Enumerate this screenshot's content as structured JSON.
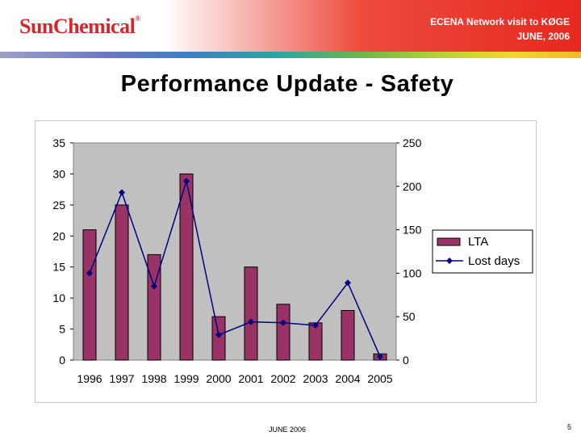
{
  "header": {
    "brand": "SunChemical",
    "brand_mark": "®",
    "event_line1": "ECENA Network visit to KØGE",
    "event_line2": "JUNE, 2006"
  },
  "slide": {
    "title": "Performance Update - Safety",
    "footer": "JUNE  2006",
    "page_number": "5"
  },
  "colors": {
    "plot_bg": "#c0c0c0",
    "bar_fill": "#993366",
    "line": "#000080",
    "marker": "#000080"
  },
  "chart_data": {
    "type": "bar",
    "categories": [
      "1996",
      "1997",
      "1998",
      "1999",
      "2000",
      "2001",
      "2002",
      "2003",
      "2004",
      "2005"
    ],
    "series": [
      {
        "name": "LTA",
        "type": "bar",
        "axis": "left",
        "values": [
          21,
          25,
          17,
          30,
          7,
          15,
          9,
          6,
          8,
          1
        ]
      },
      {
        "name": "Lost days",
        "type": "line",
        "axis": "right",
        "values": [
          100,
          193,
          85,
          206,
          29,
          44,
          43,
          40,
          89,
          4
        ]
      }
    ],
    "ylim_left": [
      0,
      35
    ],
    "yticks_left": [
      0,
      5,
      10,
      15,
      20,
      25,
      30,
      35
    ],
    "ylim_right": [
      0,
      250
    ],
    "yticks_right": [
      0,
      50,
      100,
      150,
      200,
      250
    ],
    "grid": false,
    "legend": "right"
  }
}
